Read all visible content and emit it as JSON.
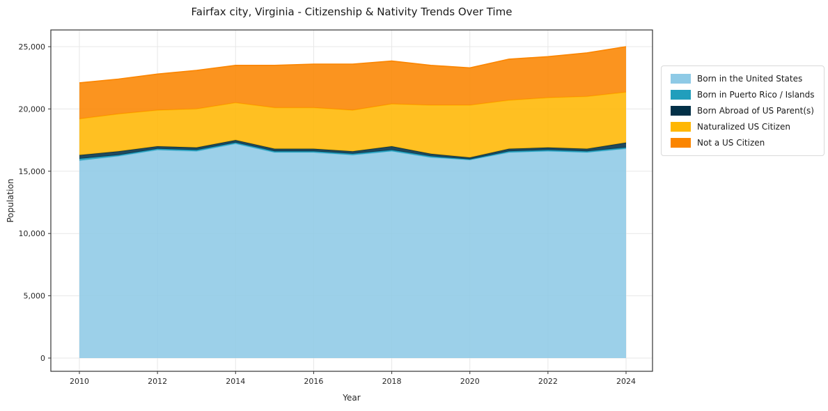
{
  "chart_data": {
    "type": "area",
    "stacked": true,
    "title": "Fairfax city, Virginia - Citizenship & Nativity Trends Over Time",
    "xlabel": "Year",
    "ylabel": "Population",
    "grid": true,
    "legend_position": "right-outside",
    "x": [
      2010,
      2011,
      2012,
      2013,
      2014,
      2015,
      2016,
      2017,
      2018,
      2019,
      2020,
      2021,
      2022,
      2023,
      2024
    ],
    "xticks": [
      2010,
      2012,
      2014,
      2016,
      2018,
      2020,
      2022,
      2024
    ],
    "yticks": [
      0,
      5000,
      10000,
      15000,
      20000,
      25000
    ],
    "ytick_labels": [
      "0",
      "5,000",
      "10,000",
      "15,000",
      "20,000",
      "25,000"
    ],
    "ylim": [
      0,
      25000
    ],
    "series": [
      {
        "name": "Born in the United States",
        "color": "#8ecae6",
        "values": [
          15850,
          16200,
          16700,
          16600,
          17200,
          16500,
          16500,
          16300,
          16600,
          16100,
          15900,
          16500,
          16600,
          16500,
          16800
        ]
      },
      {
        "name": "Born in Puerto Rico / Islands",
        "color": "#219ebc",
        "values": [
          150,
          100,
          100,
          100,
          100,
          100,
          100,
          100,
          100,
          100,
          50,
          100,
          100,
          100,
          100
        ]
      },
      {
        "name": "Born Abroad of US Parent(s)",
        "color": "#023047",
        "values": [
          300,
          300,
          200,
          200,
          200,
          200,
          200,
          200,
          300,
          200,
          150,
          200,
          200,
          200,
          400
        ]
      },
      {
        "name": "Naturalized US Citizen",
        "color": "#ffb703",
        "values": [
          2900,
          3000,
          2900,
          3100,
          3000,
          3300,
          3300,
          3300,
          3400,
          3900,
          4200,
          3900,
          4000,
          4200,
          4050
        ]
      },
      {
        "name": "Not a US Citizen",
        "color": "#fb8500",
        "values": [
          2900,
          2800,
          2900,
          3100,
          3000,
          3400,
          3500,
          3700,
          3450,
          3200,
          3000,
          3300,
          3300,
          3500,
          3650
        ]
      }
    ],
    "style": {
      "grid_color": "#e7e7e7",
      "spine_color": "#333333",
      "tick_label_color": "#262626",
      "fill_opacity": 0.88
    }
  }
}
